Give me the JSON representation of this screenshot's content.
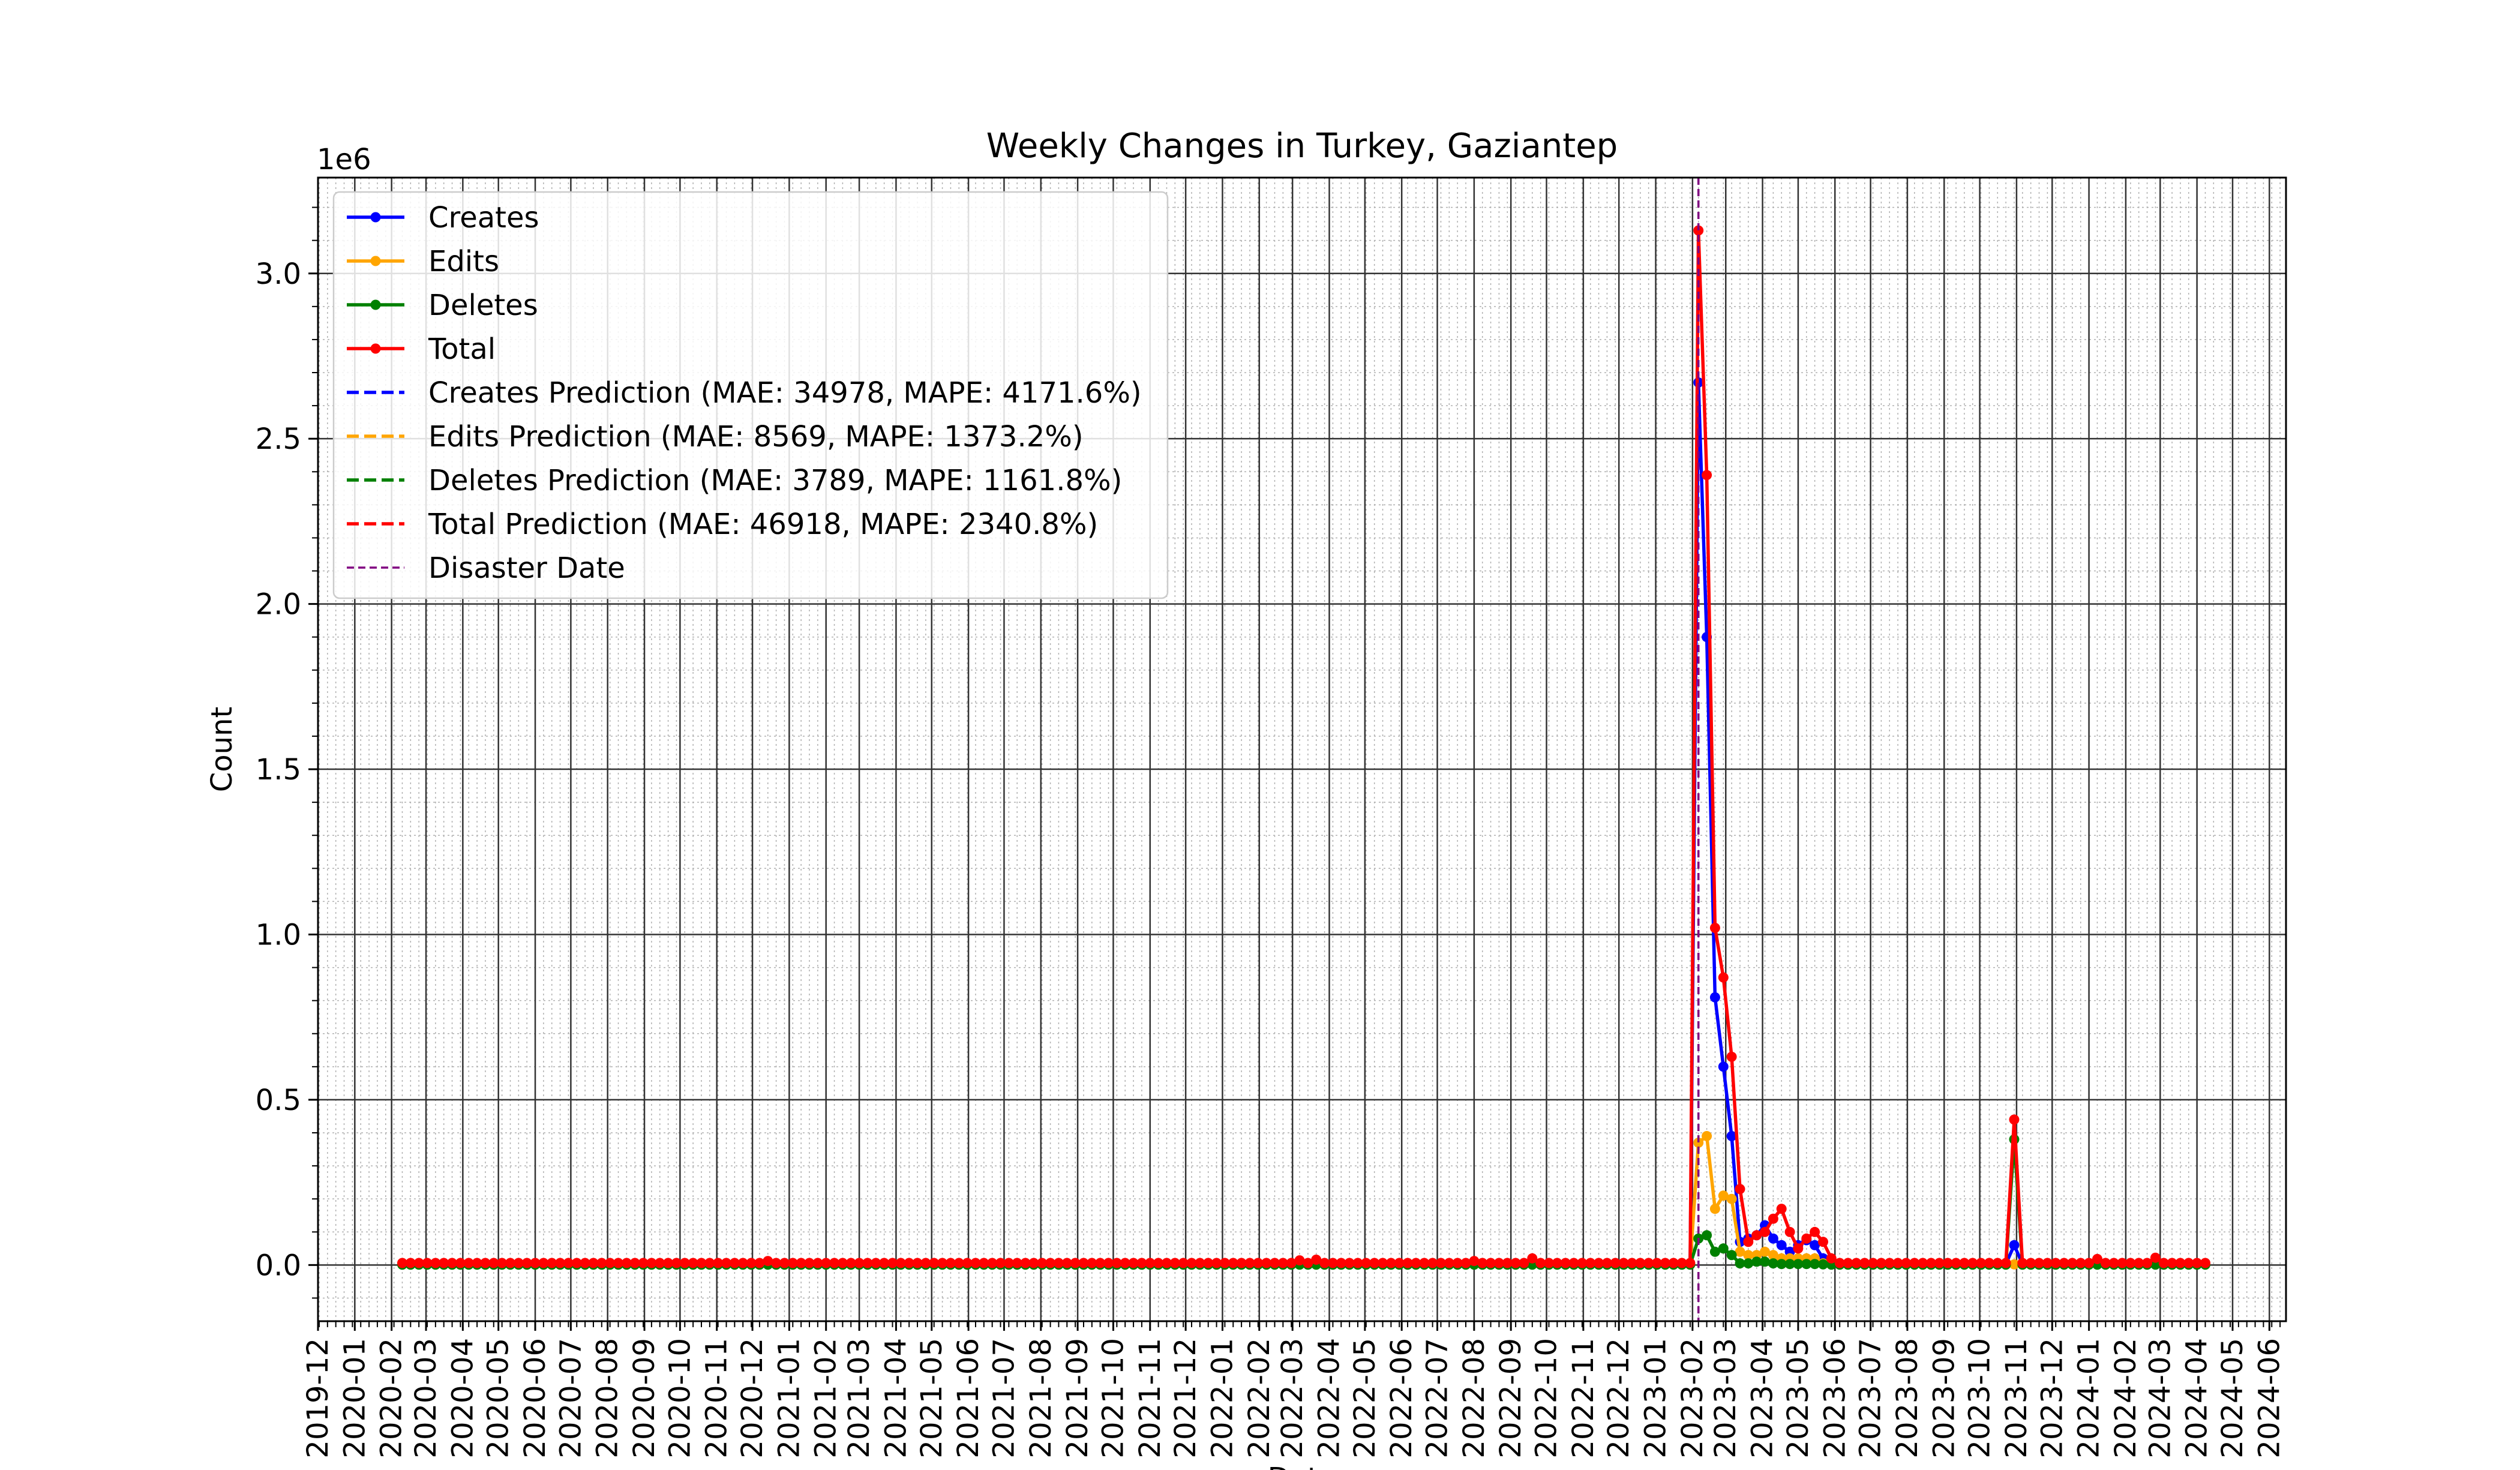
{
  "chart_data": {
    "type": "line",
    "title": "Weekly Changes in Turkey, Gaziantep",
    "xlabel": "Date",
    "ylabel": "Count",
    "y_multiplier_label": "1e6",
    "ylim": [
      -0.17,
      3.29
    ],
    "y_ticks": [
      0.0,
      0.5,
      1.0,
      1.5,
      2.0,
      2.5,
      3.0
    ],
    "y_tick_labels": [
      "0.0",
      "0.5",
      "1.0",
      "1.5",
      "2.0",
      "2.5",
      "3.0"
    ],
    "x_range": [
      "2019-12-01",
      "2024-06-15"
    ],
    "x_tick_labels": [
      "2019-12",
      "2020-01",
      "2020-02",
      "2020-03",
      "2020-04",
      "2020-05",
      "2020-06",
      "2020-07",
      "2020-08",
      "2020-09",
      "2020-10",
      "2020-11",
      "2020-12",
      "2021-01",
      "2021-02",
      "2021-03",
      "2021-04",
      "2021-05",
      "2021-06",
      "2021-07",
      "2021-08",
      "2021-09",
      "2021-10",
      "2021-11",
      "2021-12",
      "2022-01",
      "2022-02",
      "2022-03",
      "2022-04",
      "2022-05",
      "2022-06",
      "2022-07",
      "2022-08",
      "2022-09",
      "2022-10",
      "2022-11",
      "2022-12",
      "2023-01",
      "2023-02",
      "2023-03",
      "2023-04",
      "2023-05",
      "2023-06",
      "2023-07",
      "2023-08",
      "2023-09",
      "2023-10",
      "2023-11",
      "2023-12",
      "2024-01",
      "2024-02",
      "2024-03",
      "2024-04",
      "2024-05",
      "2024-06"
    ],
    "grid": true,
    "legend_position": "upper-left",
    "disaster_date": "2023-02-06",
    "weeks_start": "2020-02-10",
    "weeks_end": "2024-04-08",
    "baseline": {
      "creates": 0.003,
      "edits": 0.002,
      "deletes": 0.001,
      "total": 0.006
    },
    "bumps": [
      {
        "x": "2020-12-14",
        "total": 0.012
      },
      {
        "x": "2022-03-07",
        "total": 0.014
      },
      {
        "x": "2022-03-21",
        "total": 0.016
      },
      {
        "x": "2022-08-01",
        "total": 0.012
      },
      {
        "x": "2022-09-19",
        "total": 0.02
      },
      {
        "x": "2024-01-08",
        "total": 0.018
      },
      {
        "x": "2024-02-26",
        "total": 0.022
      }
    ],
    "series": [
      {
        "name": "Creates",
        "color": "#0000ff",
        "points": [
          [
            "2023-01-30",
            0.003
          ],
          [
            "2023-02-06",
            2.67
          ],
          [
            "2023-02-13",
            1.9
          ],
          [
            "2023-02-20",
            0.81
          ],
          [
            "2023-02-27",
            0.6
          ],
          [
            "2023-03-06",
            0.39
          ],
          [
            "2023-03-13",
            0.07
          ],
          [
            "2023-03-20",
            0.08
          ],
          [
            "2023-03-27",
            0.09
          ],
          [
            "2023-04-03",
            0.12
          ],
          [
            "2023-04-10",
            0.08
          ],
          [
            "2023-04-17",
            0.06
          ],
          [
            "2023-04-24",
            0.04
          ],
          [
            "2023-05-01",
            0.06
          ],
          [
            "2023-05-08",
            0.075
          ],
          [
            "2023-05-15",
            0.06
          ],
          [
            "2023-05-22",
            0.02
          ],
          [
            "2023-05-29",
            0.003
          ],
          [
            "2023-10-23",
            0.003
          ],
          [
            "2023-10-30",
            0.06
          ],
          [
            "2023-11-06",
            0.003
          ]
        ]
      },
      {
        "name": "Edits",
        "color": "#ffa500",
        "points": [
          [
            "2023-01-30",
            0.002
          ],
          [
            "2023-02-06",
            0.37
          ],
          [
            "2023-02-13",
            0.39
          ],
          [
            "2023-02-20",
            0.17
          ],
          [
            "2023-02-27",
            0.21
          ],
          [
            "2023-03-06",
            0.2
          ],
          [
            "2023-03-13",
            0.04
          ],
          [
            "2023-03-20",
            0.03
          ],
          [
            "2023-03-27",
            0.03
          ],
          [
            "2023-04-03",
            0.04
          ],
          [
            "2023-04-10",
            0.03
          ],
          [
            "2023-04-17",
            0.02
          ],
          [
            "2023-04-24",
            0.02
          ],
          [
            "2023-05-01",
            0.02
          ],
          [
            "2023-05-08",
            0.02
          ],
          [
            "2023-05-15",
            0.02
          ],
          [
            "2023-05-22",
            0.005
          ],
          [
            "2023-05-29",
            0.002
          ]
        ]
      },
      {
        "name": "Deletes",
        "color": "#008000",
        "points": [
          [
            "2023-01-30",
            0.001
          ],
          [
            "2023-02-06",
            0.08
          ],
          [
            "2023-02-13",
            0.09
          ],
          [
            "2023-02-20",
            0.04
          ],
          [
            "2023-02-27",
            0.05
          ],
          [
            "2023-03-06",
            0.03
          ],
          [
            "2023-03-13",
            0.005
          ],
          [
            "2023-03-20",
            0.005
          ],
          [
            "2023-03-27",
            0.01
          ],
          [
            "2023-04-03",
            0.01
          ],
          [
            "2023-04-10",
            0.005
          ],
          [
            "2023-04-17",
            0.003
          ],
          [
            "2023-04-24",
            0.003
          ],
          [
            "2023-05-01",
            0.003
          ],
          [
            "2023-05-08",
            0.003
          ],
          [
            "2023-05-15",
            0.003
          ],
          [
            "2023-05-22",
            0.002
          ],
          [
            "2023-05-29",
            0.001
          ],
          [
            "2023-10-23",
            0.001
          ],
          [
            "2023-10-30",
            0.38
          ],
          [
            "2023-11-06",
            0.001
          ]
        ]
      },
      {
        "name": "Total",
        "color": "#ff0000",
        "points": [
          [
            "2023-01-30",
            0.006
          ],
          [
            "2023-02-06",
            3.13
          ],
          [
            "2023-02-13",
            2.39
          ],
          [
            "2023-02-20",
            1.02
          ],
          [
            "2023-02-27",
            0.87
          ],
          [
            "2023-03-06",
            0.63
          ],
          [
            "2023-03-13",
            0.23
          ],
          [
            "2023-03-20",
            0.07
          ],
          [
            "2023-03-27",
            0.09
          ],
          [
            "2023-04-03",
            0.1
          ],
          [
            "2023-04-10",
            0.14
          ],
          [
            "2023-04-17",
            0.17
          ],
          [
            "2023-04-24",
            0.1
          ],
          [
            "2023-05-01",
            0.05
          ],
          [
            "2023-05-08",
            0.08
          ],
          [
            "2023-05-15",
            0.1
          ],
          [
            "2023-05-22",
            0.07
          ],
          [
            "2023-05-29",
            0.02
          ],
          [
            "2023-10-23",
            0.006
          ],
          [
            "2023-10-30",
            0.44
          ],
          [
            "2023-11-06",
            0.006
          ]
        ]
      }
    ],
    "legend": [
      {
        "label": "Creates",
        "color": "#0000ff",
        "style": "marker-line"
      },
      {
        "label": "Edits",
        "color": "#ffa500",
        "style": "marker-line"
      },
      {
        "label": "Deletes",
        "color": "#008000",
        "style": "marker-line"
      },
      {
        "label": "Total",
        "color": "#ff0000",
        "style": "marker-line"
      },
      {
        "label": "Creates Prediction (MAE: 34978, MAPE: 4171.6%)",
        "color": "#0000ff",
        "style": "dashed"
      },
      {
        "label": "Edits Prediction (MAE: 8569, MAPE: 1373.2%)",
        "color": "#ffa500",
        "style": "dashed"
      },
      {
        "label": "Deletes Prediction (MAE: 3789, MAPE: 1161.8%)",
        "color": "#008000",
        "style": "dashed"
      },
      {
        "label": "Total Prediction (MAE: 46918, MAPE: 2340.8%)",
        "color": "#ff0000",
        "style": "dashed"
      },
      {
        "label": "Disaster Date",
        "color": "#800080",
        "style": "dashed-thin"
      }
    ]
  }
}
